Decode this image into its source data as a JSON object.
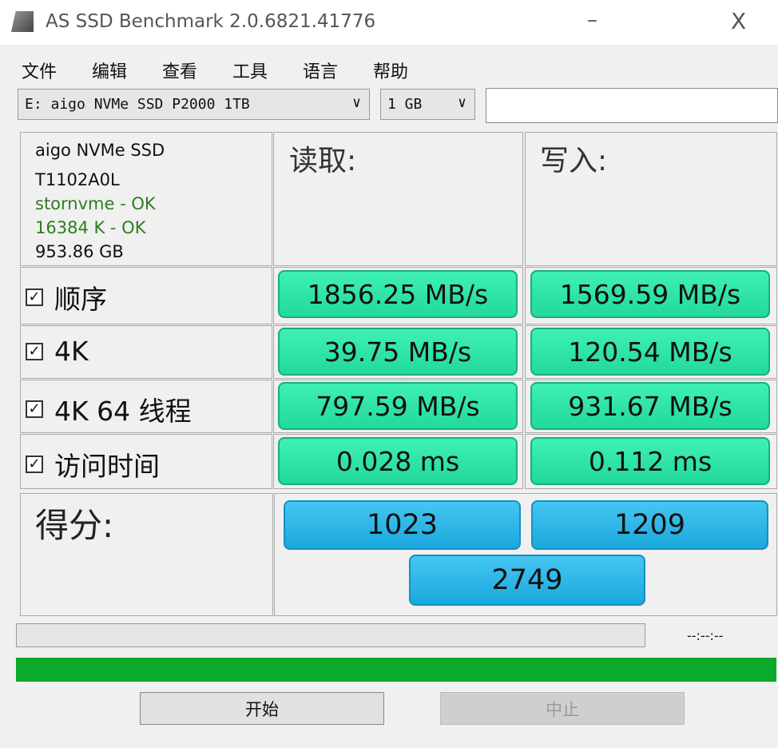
{
  "window": {
    "title": "AS SSD Benchmark 2.0.6821.41776",
    "minimize": "–",
    "close": "X"
  },
  "menu": [
    "文件",
    "编辑",
    "查看",
    "工具",
    "语言",
    "帮助"
  ],
  "drive_select": {
    "value": "E: aigo NVMe SSD P2000 1TB"
  },
  "size_select": {
    "value": "1 GB"
  },
  "info": {
    "model": "aigo NVMe SSD",
    "firmware": "T1102A0L",
    "driver": "stornvme - OK",
    "alignment": "16384 K - OK",
    "capacity": "953.86 GB",
    "driver_color": "#2e7d1e"
  },
  "headers": {
    "read": "读取:",
    "write": "写入:"
  },
  "rows": [
    {
      "label": "顺序",
      "checked": true,
      "read": "1856.25 MB/s",
      "write": "1569.59 MB/s"
    },
    {
      "label": "4K",
      "checked": true,
      "read": "39.75 MB/s",
      "write": "120.54 MB/s"
    },
    {
      "label": "4K 64 线程",
      "checked": true,
      "read": "797.59 MB/s",
      "write": "931.67 MB/s"
    },
    {
      "label": "访问时间",
      "checked": true,
      "read": "0.028 ms",
      "write": "0.112 ms"
    }
  ],
  "score": {
    "label": "得分:",
    "read": "1023",
    "write": "1209",
    "total": "2749"
  },
  "progress": {
    "time": "--:--:--",
    "overall_progress": 100
  },
  "buttons": {
    "start": "开始",
    "abort": "中止"
  },
  "colors": {
    "result": "#2ee3a6",
    "score": "#29b6e8",
    "progress": "#0aaa2a"
  }
}
